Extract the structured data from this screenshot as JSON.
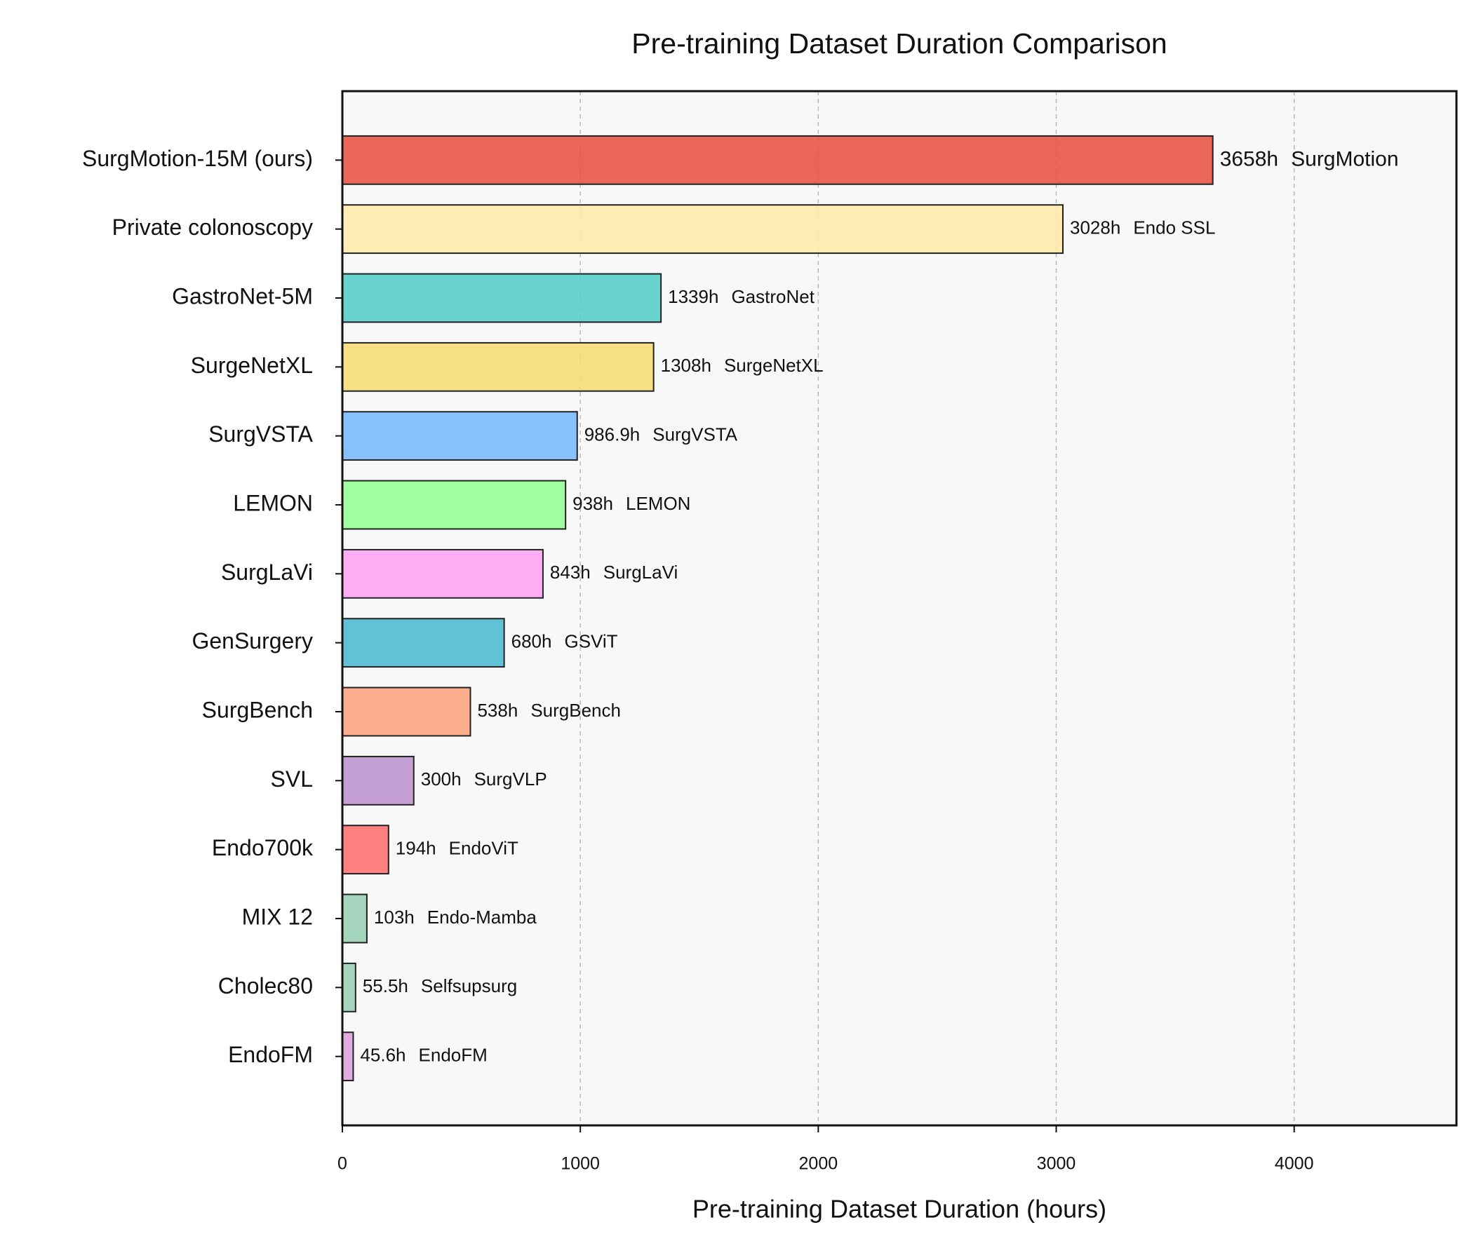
{
  "chart_data": {
    "type": "bar",
    "orientation": "horizontal",
    "title": "Pre-training Dataset Duration Comparison",
    "x_label": "Pre-training Dataset Duration (hours)",
    "categories": [
      "SurgMotion-15M (ours)",
      "Private colonoscopy",
      "GastroNet-5M",
      "SurgeNetXL",
      "SurgVSTA",
      "LEMON",
      "SurgLaVi",
      "GenSurgery",
      "SurgBench",
      "SVL",
      "Endo700k",
      "MIX 12",
      "Cholec80",
      "EndoFM"
    ],
    "values": [
      3658,
      3028,
      1339,
      1308,
      986.9,
      938,
      843,
      680,
      538,
      300,
      194,
      103,
      55.5,
      45.6
    ],
    "value_labels": [
      "3658h",
      "3028h",
      "1339h",
      "1308h",
      "986.9h",
      "938h",
      "843h",
      "680h",
      "538h",
      "300h",
      "194h",
      "103h",
      "55.5h",
      "45.6h"
    ],
    "models": [
      "SurgMotion",
      "Endo SSL",
      "GastroNet",
      "SurgeNetXL",
      "SurgVSTA",
      "LEMON",
      "SurgLaVi",
      "GSViT",
      "SurgBench",
      "SurgVLP",
      "EndoViT",
      "Endo-Mamba",
      "Selfsupsurg",
      "EndoFM"
    ],
    "colors": [
      "#e74c3c",
      "#ffeaa7",
      "#4ecdc4",
      "#f7dc6f",
      "#74b9ff",
      "#90ff90",
      "#ff9ff3",
      "#45b7d1",
      "#ffa07a",
      "#bb8fce",
      "#ff6b6b",
      "#96ceb4",
      "#96ceb4",
      "#dda0dd"
    ],
    "highlight_category": "SurgMotion-15M (ours)",
    "highlight_color": "#d9473a",
    "xlim": [
      0,
      4682
    ],
    "xticks": [
      0,
      1000,
      2000,
      3000,
      4000
    ],
    "grid": true
  }
}
